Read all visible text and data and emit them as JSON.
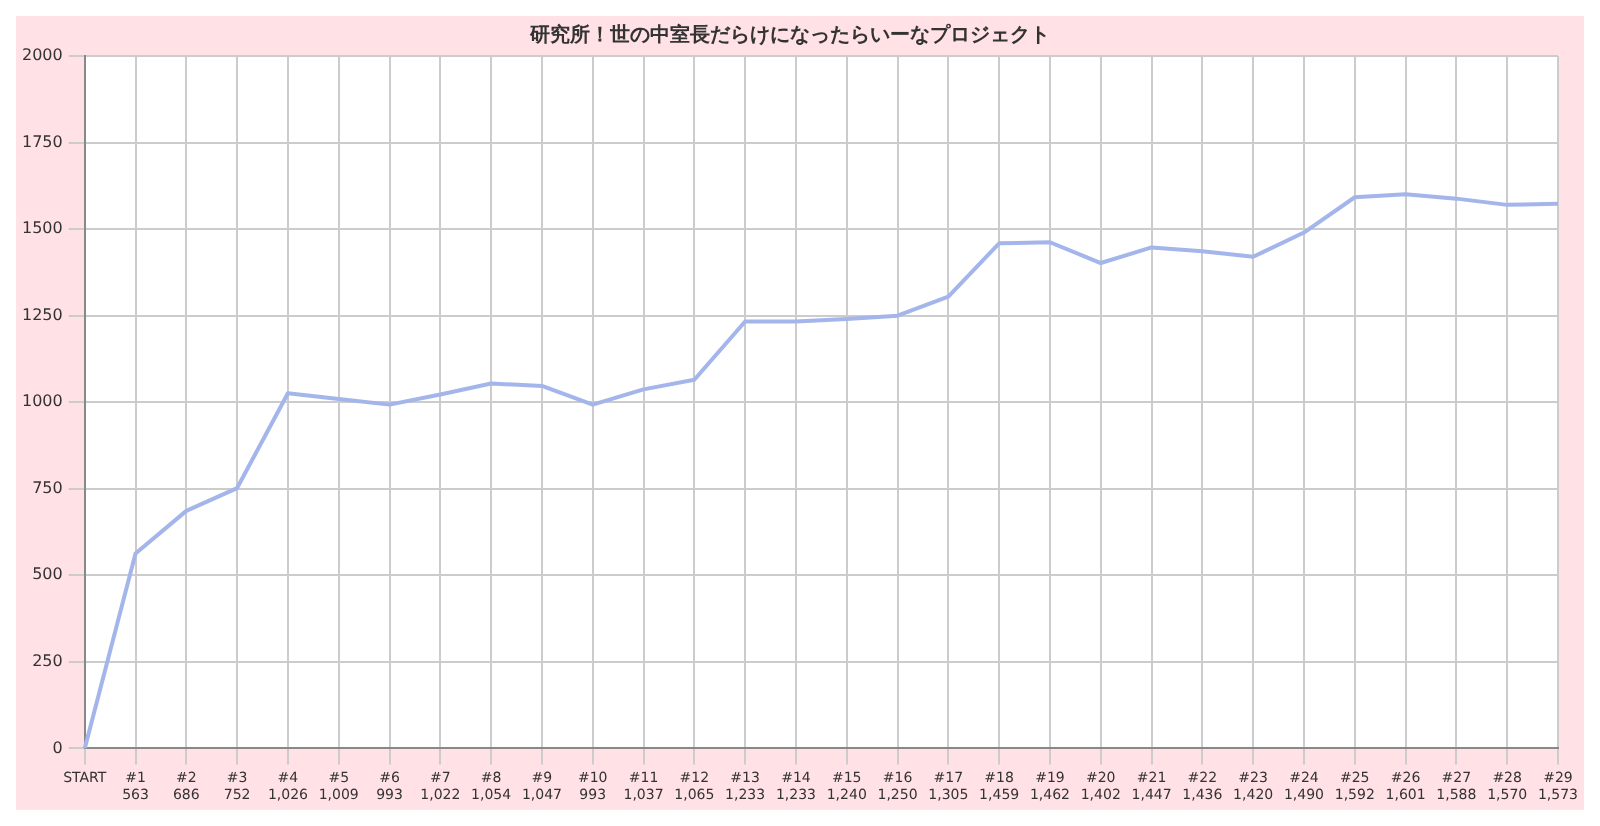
{
  "chart_data": {
    "type": "line",
    "title": "研究所！世の中室長だらけになったらいーなプロジェクト",
    "categories": [
      "START",
      "#1",
      "#2",
      "#3",
      "#4",
      "#5",
      "#6",
      "#7",
      "#8",
      "#9",
      "#10",
      "#11",
      "#12",
      "#13",
      "#14",
      "#15",
      "#16",
      "#17",
      "#18",
      "#19",
      "#20",
      "#21",
      "#22",
      "#23",
      "#24",
      "#25",
      "#26",
      "#27",
      "#28",
      "#29"
    ],
    "series": [
      {
        "color": "#a3b5ea",
        "values": [
          0,
          563,
          686,
          752,
          1026,
          1009,
          993,
          1022,
          1054,
          1047,
          993,
          1037,
          1065,
          1233,
          1233,
          1240,
          1250,
          1305,
          1459,
          1462,
          1402,
          1447,
          1436,
          1420,
          1490,
          1592,
          1601,
          1588,
          1570,
          1573
        ],
        "value_labels": [
          null,
          "563",
          "686",
          "752",
          "1,026",
          "1,009",
          "993",
          "1,022",
          "1,054",
          "1,047",
          "993",
          "1,037",
          "1,065",
          "1,233",
          "1,233",
          "1,240",
          "1,250",
          "1,305",
          "1,459",
          "1,462",
          "1,402",
          "1,447",
          "1,436",
          "1,420",
          "1,490",
          "1,592",
          "1,601",
          "1,588",
          "1,570",
          "1,573"
        ]
      }
    ],
    "ylim": [
      0,
      2000
    ],
    "yticks": [
      0,
      250,
      500,
      750,
      1000,
      1250,
      1500,
      1750,
      2000
    ],
    "grid": true,
    "legend": false,
    "marker": "none",
    "line_style": "solid"
  }
}
